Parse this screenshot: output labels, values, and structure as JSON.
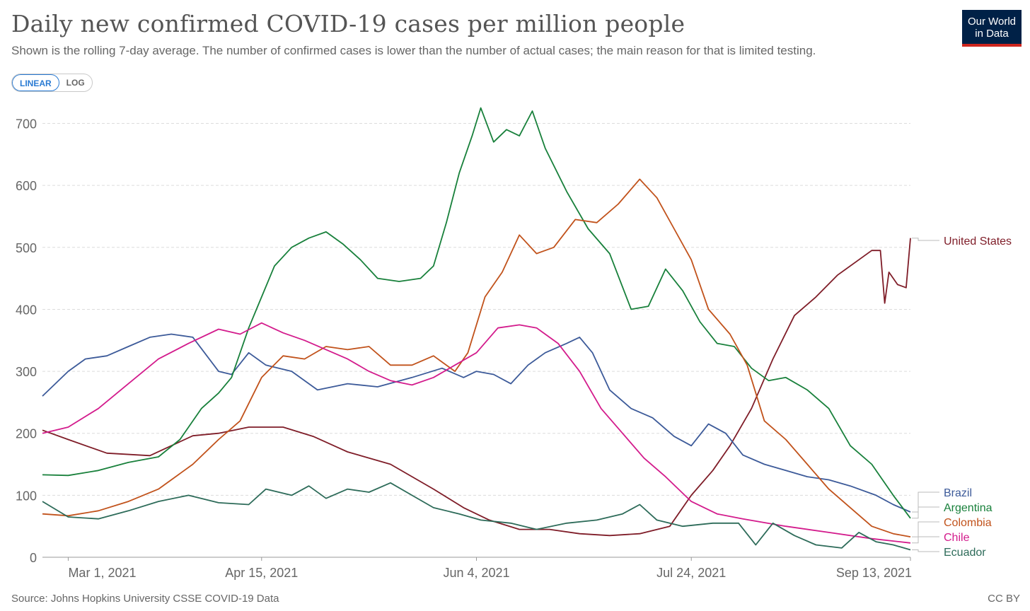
{
  "header": {
    "title": "Daily new confirmed COVID-19 cases per million people",
    "subtitle": "Shown is the rolling 7-day average. The number of confirmed cases is lower than the number of actual cases; the main reason for that is limited testing.",
    "logo_line1": "Our World",
    "logo_line2": "in Data"
  },
  "controls": {
    "linear_label": "LINEAR",
    "log_label": "LOG",
    "active": "linear"
  },
  "footer": {
    "source": "Source: Johns Hopkins University CSSE COVID-19 Data",
    "license": "CC BY"
  },
  "chart_data": {
    "type": "line",
    "title": "Daily new confirmed COVID-19 cases per million people",
    "xlabel": "",
    "ylabel": "",
    "x_start": "2021-02-23",
    "x_end": "2021-09-13",
    "ylim": [
      0,
      720
    ],
    "yticks": [
      0,
      100,
      200,
      300,
      400,
      500,
      600,
      700
    ],
    "xticks": [
      {
        "date": "2021-03-01",
        "label": "Mar 1, 2021"
      },
      {
        "date": "2021-04-15",
        "label": "Apr 15, 2021"
      },
      {
        "date": "2021-06-04",
        "label": "Jun 4, 2021"
      },
      {
        "date": "2021-07-24",
        "label": "Jul 24, 2021"
      },
      {
        "date": "2021-09-13",
        "label": "Sep 13, 2021"
      }
    ],
    "grid": "horizontal dashed",
    "legend_placement": "right end labels",
    "series": [
      {
        "name": "United States",
        "color": "#7f1d28",
        "label_value": 515,
        "points": [
          [
            "2021-02-23",
            205
          ],
          [
            "2021-03-01",
            190
          ],
          [
            "2021-03-10",
            168
          ],
          [
            "2021-03-20",
            164
          ],
          [
            "2021-03-30",
            196
          ],
          [
            "2021-04-05",
            200
          ],
          [
            "2021-04-12",
            210
          ],
          [
            "2021-04-20",
            210
          ],
          [
            "2021-04-27",
            195
          ],
          [
            "2021-05-05",
            170
          ],
          [
            "2021-05-15",
            150
          ],
          [
            "2021-05-25",
            110
          ],
          [
            "2021-06-01",
            80
          ],
          [
            "2021-06-07",
            60
          ],
          [
            "2021-06-14",
            45
          ],
          [
            "2021-06-21",
            45
          ],
          [
            "2021-06-28",
            38
          ],
          [
            "2021-07-05",
            35
          ],
          [
            "2021-07-12",
            38
          ],
          [
            "2021-07-19",
            50
          ],
          [
            "2021-07-24",
            100
          ],
          [
            "2021-07-29",
            140
          ],
          [
            "2021-08-02",
            180
          ],
          [
            "2021-08-07",
            240
          ],
          [
            "2021-08-12",
            320
          ],
          [
            "2021-08-17",
            390
          ],
          [
            "2021-08-22",
            420
          ],
          [
            "2021-08-27",
            455
          ],
          [
            "2021-09-01",
            480
          ],
          [
            "2021-09-04",
            495
          ],
          [
            "2021-09-06",
            495
          ],
          [
            "2021-09-07",
            410
          ],
          [
            "2021-09-08",
            460
          ],
          [
            "2021-09-10",
            440
          ],
          [
            "2021-09-12",
            435
          ],
          [
            "2021-09-13",
            515
          ]
        ]
      },
      {
        "name": "Brazil",
        "color": "#3c5a99",
        "label_value": 73,
        "points": [
          [
            "2021-02-23",
            260
          ],
          [
            "2021-03-01",
            300
          ],
          [
            "2021-03-05",
            320
          ],
          [
            "2021-03-10",
            325
          ],
          [
            "2021-03-15",
            340
          ],
          [
            "2021-03-20",
            355
          ],
          [
            "2021-03-25",
            360
          ],
          [
            "2021-03-30",
            355
          ],
          [
            "2021-04-05",
            300
          ],
          [
            "2021-04-08",
            295
          ],
          [
            "2021-04-12",
            330
          ],
          [
            "2021-04-16",
            310
          ],
          [
            "2021-04-22",
            300
          ],
          [
            "2021-04-28",
            270
          ],
          [
            "2021-05-05",
            280
          ],
          [
            "2021-05-12",
            275
          ],
          [
            "2021-05-20",
            290
          ],
          [
            "2021-05-27",
            305
          ],
          [
            "2021-06-01",
            290
          ],
          [
            "2021-06-04",
            300
          ],
          [
            "2021-06-08",
            295
          ],
          [
            "2021-06-12",
            280
          ],
          [
            "2021-06-16",
            310
          ],
          [
            "2021-06-20",
            330
          ],
          [
            "2021-06-25",
            345
          ],
          [
            "2021-06-28",
            355
          ],
          [
            "2021-07-01",
            330
          ],
          [
            "2021-07-05",
            270
          ],
          [
            "2021-07-10",
            240
          ],
          [
            "2021-07-15",
            225
          ],
          [
            "2021-07-20",
            195
          ],
          [
            "2021-07-24",
            180
          ],
          [
            "2021-07-28",
            215
          ],
          [
            "2021-08-01",
            200
          ],
          [
            "2021-08-05",
            165
          ],
          [
            "2021-08-10",
            150
          ],
          [
            "2021-08-15",
            140
          ],
          [
            "2021-08-20",
            130
          ],
          [
            "2021-08-25",
            125
          ],
          [
            "2021-08-30",
            115
          ],
          [
            "2021-09-05",
            100
          ],
          [
            "2021-09-09",
            85
          ],
          [
            "2021-09-13",
            73
          ]
        ]
      },
      {
        "name": "Argentina",
        "color": "#18803b",
        "label_value": 63,
        "points": [
          [
            "2021-02-23",
            133
          ],
          [
            "2021-03-01",
            132
          ],
          [
            "2021-03-08",
            140
          ],
          [
            "2021-03-15",
            153
          ],
          [
            "2021-03-22",
            162
          ],
          [
            "2021-03-27",
            190
          ],
          [
            "2021-04-01",
            240
          ],
          [
            "2021-04-05",
            265
          ],
          [
            "2021-04-08",
            290
          ],
          [
            "2021-04-12",
            370
          ],
          [
            "2021-04-15",
            420
          ],
          [
            "2021-04-18",
            470
          ],
          [
            "2021-04-22",
            500
          ],
          [
            "2021-04-26",
            515
          ],
          [
            "2021-04-30",
            525
          ],
          [
            "2021-05-04",
            505
          ],
          [
            "2021-05-08",
            480
          ],
          [
            "2021-05-12",
            450
          ],
          [
            "2021-05-17",
            445
          ],
          [
            "2021-05-22",
            450
          ],
          [
            "2021-05-25",
            470
          ],
          [
            "2021-05-28",
            540
          ],
          [
            "2021-05-31",
            620
          ],
          [
            "2021-06-03",
            680
          ],
          [
            "2021-06-05",
            725
          ],
          [
            "2021-06-08",
            670
          ],
          [
            "2021-06-11",
            690
          ],
          [
            "2021-06-14",
            680
          ],
          [
            "2021-06-17",
            720
          ],
          [
            "2021-06-20",
            660
          ],
          [
            "2021-06-25",
            590
          ],
          [
            "2021-06-30",
            530
          ],
          [
            "2021-07-05",
            490
          ],
          [
            "2021-07-10",
            400
          ],
          [
            "2021-07-14",
            405
          ],
          [
            "2021-07-18",
            465
          ],
          [
            "2021-07-22",
            430
          ],
          [
            "2021-07-26",
            380
          ],
          [
            "2021-07-30",
            345
          ],
          [
            "2021-08-03",
            340
          ],
          [
            "2021-08-07",
            305
          ],
          [
            "2021-08-11",
            285
          ],
          [
            "2021-08-15",
            290
          ],
          [
            "2021-08-20",
            270
          ],
          [
            "2021-08-25",
            240
          ],
          [
            "2021-08-30",
            180
          ],
          [
            "2021-09-04",
            150
          ],
          [
            "2021-09-09",
            100
          ],
          [
            "2021-09-13",
            63
          ]
        ]
      },
      {
        "name": "Colombia",
        "color": "#c1521b",
        "label_value": 33,
        "points": [
          [
            "2021-02-23",
            70
          ],
          [
            "2021-03-01",
            67
          ],
          [
            "2021-03-08",
            75
          ],
          [
            "2021-03-15",
            90
          ],
          [
            "2021-03-22",
            110
          ],
          [
            "2021-03-30",
            150
          ],
          [
            "2021-04-05",
            190
          ],
          [
            "2021-04-10",
            220
          ],
          [
            "2021-04-15",
            290
          ],
          [
            "2021-04-20",
            325
          ],
          [
            "2021-04-25",
            320
          ],
          [
            "2021-04-30",
            340
          ],
          [
            "2021-05-05",
            335
          ],
          [
            "2021-05-10",
            340
          ],
          [
            "2021-05-15",
            310
          ],
          [
            "2021-05-20",
            310
          ],
          [
            "2021-05-25",
            325
          ],
          [
            "2021-05-30",
            300
          ],
          [
            "2021-06-02",
            330
          ],
          [
            "2021-06-06",
            420
          ],
          [
            "2021-06-10",
            460
          ],
          [
            "2021-06-14",
            520
          ],
          [
            "2021-06-18",
            490
          ],
          [
            "2021-06-22",
            500
          ],
          [
            "2021-06-27",
            545
          ],
          [
            "2021-07-02",
            540
          ],
          [
            "2021-07-07",
            570
          ],
          [
            "2021-07-12",
            610
          ],
          [
            "2021-07-16",
            580
          ],
          [
            "2021-07-20",
            530
          ],
          [
            "2021-07-24",
            480
          ],
          [
            "2021-07-28",
            400
          ],
          [
            "2021-08-02",
            360
          ],
          [
            "2021-08-06",
            310
          ],
          [
            "2021-08-10",
            220
          ],
          [
            "2021-08-15",
            190
          ],
          [
            "2021-08-20",
            150
          ],
          [
            "2021-08-25",
            110
          ],
          [
            "2021-08-30",
            80
          ],
          [
            "2021-09-04",
            50
          ],
          [
            "2021-09-09",
            38
          ],
          [
            "2021-09-13",
            33
          ]
        ]
      },
      {
        "name": "Chile",
        "color": "#d31b8c",
        "label_value": 23,
        "points": [
          [
            "2021-02-23",
            200
          ],
          [
            "2021-03-01",
            210
          ],
          [
            "2021-03-08",
            240
          ],
          [
            "2021-03-15",
            280
          ],
          [
            "2021-03-22",
            320
          ],
          [
            "2021-03-29",
            345
          ],
          [
            "2021-04-05",
            368
          ],
          [
            "2021-04-10",
            360
          ],
          [
            "2021-04-15",
            378
          ],
          [
            "2021-04-20",
            362
          ],
          [
            "2021-04-25",
            350
          ],
          [
            "2021-04-30",
            335
          ],
          [
            "2021-05-05",
            320
          ],
          [
            "2021-05-10",
            300
          ],
          [
            "2021-05-15",
            285
          ],
          [
            "2021-05-20",
            278
          ],
          [
            "2021-05-25",
            290
          ],
          [
            "2021-05-30",
            310
          ],
          [
            "2021-06-04",
            330
          ],
          [
            "2021-06-09",
            370
          ],
          [
            "2021-06-14",
            375
          ],
          [
            "2021-06-18",
            370
          ],
          [
            "2021-06-23",
            345
          ],
          [
            "2021-06-28",
            300
          ],
          [
            "2021-07-03",
            240
          ],
          [
            "2021-07-08",
            200
          ],
          [
            "2021-07-13",
            160
          ],
          [
            "2021-07-18",
            130
          ],
          [
            "2021-07-24",
            90
          ],
          [
            "2021-07-30",
            70
          ],
          [
            "2021-08-05",
            62
          ],
          [
            "2021-08-15",
            50
          ],
          [
            "2021-08-25",
            40
          ],
          [
            "2021-09-04",
            30
          ],
          [
            "2021-09-13",
            23
          ]
        ]
      },
      {
        "name": "Ecuador",
        "color": "#2d6b59",
        "label_value": 12,
        "points": [
          [
            "2021-02-23",
            90
          ],
          [
            "2021-03-01",
            65
          ],
          [
            "2021-03-08",
            62
          ],
          [
            "2021-03-15",
            75
          ],
          [
            "2021-03-22",
            90
          ],
          [
            "2021-03-29",
            100
          ],
          [
            "2021-04-05",
            88
          ],
          [
            "2021-04-12",
            85
          ],
          [
            "2021-04-16",
            110
          ],
          [
            "2021-04-22",
            100
          ],
          [
            "2021-04-26",
            115
          ],
          [
            "2021-04-30",
            95
          ],
          [
            "2021-05-05",
            110
          ],
          [
            "2021-05-10",
            105
          ],
          [
            "2021-05-15",
            120
          ],
          [
            "2021-05-20",
            100
          ],
          [
            "2021-05-25",
            80
          ],
          [
            "2021-05-31",
            70
          ],
          [
            "2021-06-05",
            60
          ],
          [
            "2021-06-12",
            55
          ],
          [
            "2021-06-18",
            45
          ],
          [
            "2021-06-25",
            55
          ],
          [
            "2021-07-02",
            60
          ],
          [
            "2021-07-08",
            70
          ],
          [
            "2021-07-12",
            85
          ],
          [
            "2021-07-16",
            60
          ],
          [
            "2021-07-22",
            50
          ],
          [
            "2021-07-29",
            55
          ],
          [
            "2021-08-04",
            55
          ],
          [
            "2021-08-08",
            20
          ],
          [
            "2021-08-12",
            55
          ],
          [
            "2021-08-17",
            35
          ],
          [
            "2021-08-22",
            20
          ],
          [
            "2021-08-28",
            15
          ],
          [
            "2021-09-01",
            40
          ],
          [
            "2021-09-05",
            25
          ],
          [
            "2021-09-09",
            20
          ],
          [
            "2021-09-13",
            12
          ]
        ]
      }
    ]
  }
}
